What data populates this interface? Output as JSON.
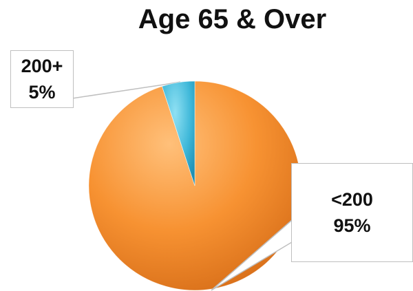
{
  "chart_data": {
    "type": "pie",
    "title": "Age 65 & Over",
    "slices": [
      {
        "label": "<200",
        "value": 95,
        "value_label": "95%",
        "color": "#F79232"
      },
      {
        "label": "200+",
        "value": 5,
        "value_label": "5%",
        "color": "#3FB8D9"
      }
    ],
    "legend": "none",
    "data_labels": "callouts"
  }
}
